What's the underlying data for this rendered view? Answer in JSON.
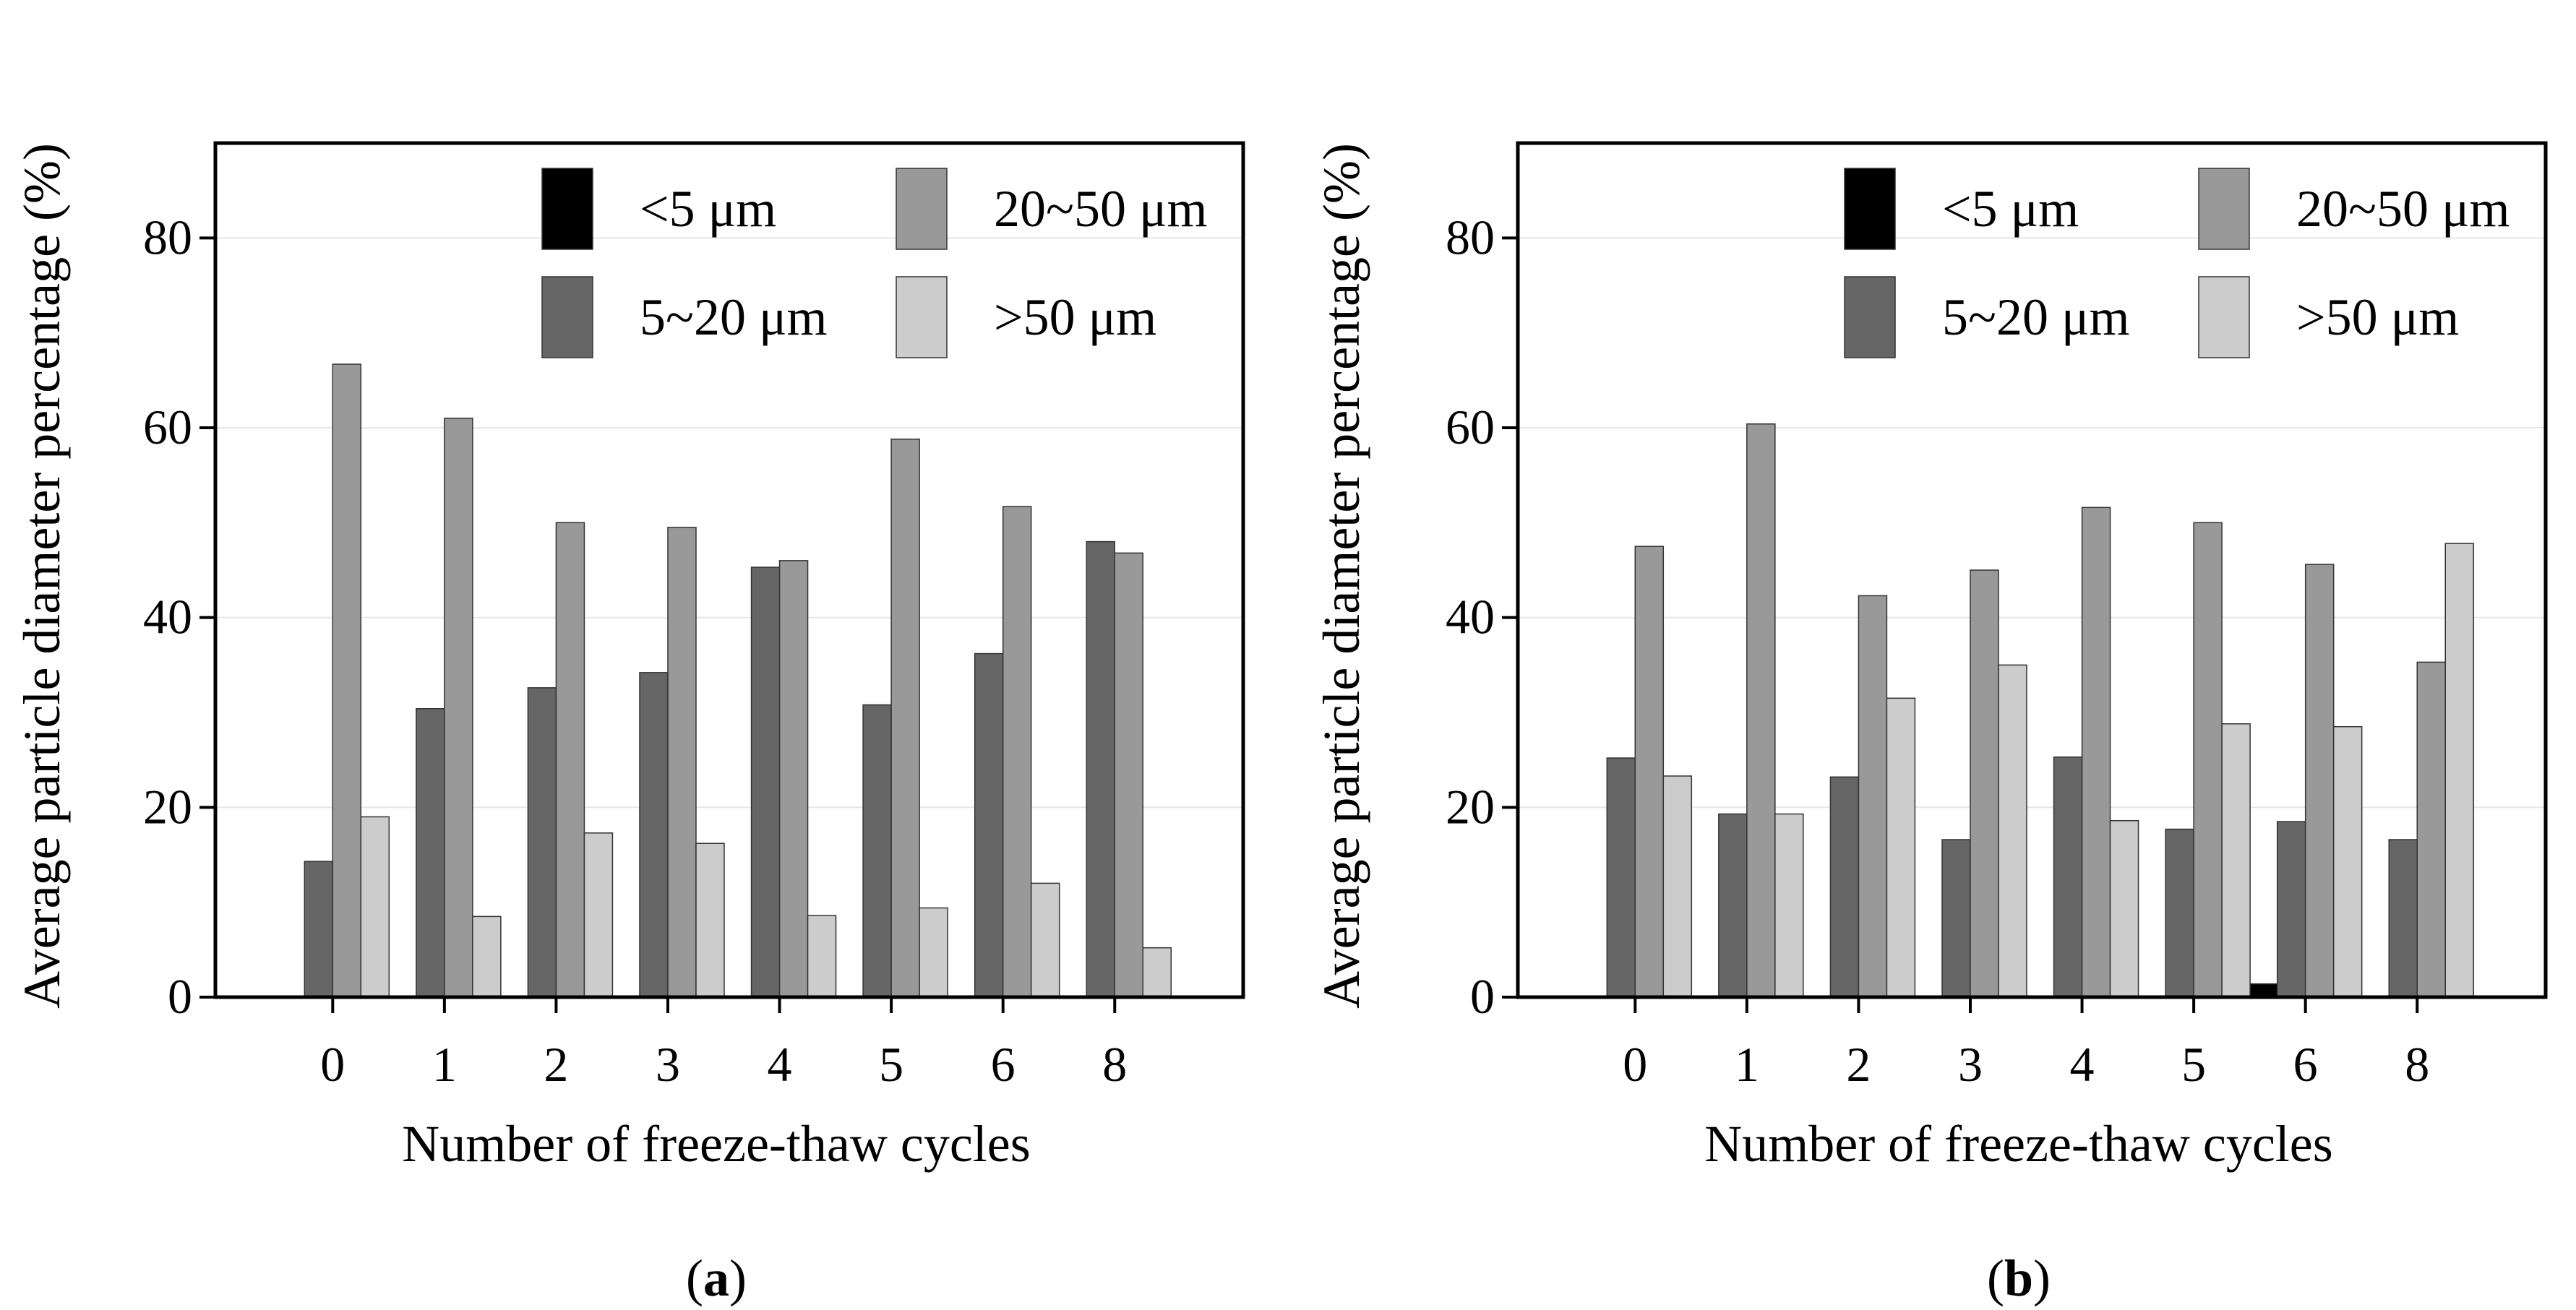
{
  "chart_data": [
    {
      "type": "bar",
      "panel_label": "a",
      "categories": [
        "0",
        "1",
        "2",
        "3",
        "4",
        "5",
        "6",
        "8"
      ],
      "xlabel": "Number of freeze-thaw cycles",
      "ylabel": "Average particle diameter percentage (%)",
      "ylim": [
        0,
        90
      ],
      "yticks": [
        0,
        20,
        40,
        60,
        80
      ],
      "grid": true,
      "legend_position": "top-right",
      "series": [
        {
          "name": "<5 μm",
          "color": "#000000",
          "values": [
            0,
            0,
            0,
            0,
            0,
            0,
            0,
            0
          ]
        },
        {
          "name": "5~20 μm",
          "color": "#666666",
          "values": [
            14.3,
            30.4,
            32.6,
            34.2,
            45.3,
            30.8,
            36.2,
            48.0
          ]
        },
        {
          "name": "20~50 μm",
          "color": "#999999",
          "values": [
            66.7,
            61.0,
            50.0,
            49.5,
            46.0,
            58.8,
            51.7,
            46.8
          ]
        },
        {
          "name": ">50 μm",
          "color": "#cccccc",
          "values": [
            19.0,
            8.5,
            17.3,
            16.2,
            8.6,
            9.4,
            12.0,
            5.2
          ]
        }
      ]
    },
    {
      "type": "bar",
      "panel_label": "b",
      "categories": [
        "0",
        "1",
        "2",
        "3",
        "4",
        "5",
        "6",
        "8"
      ],
      "xlabel": "Number of freeze-thaw cycles",
      "ylabel": "Average particle diameter percentage (%)",
      "ylim": [
        0,
        90
      ],
      "yticks": [
        0,
        20,
        40,
        60,
        80
      ],
      "grid": true,
      "legend_position": "top-right",
      "series": [
        {
          "name": "<5 μm",
          "color": "#000000",
          "values": [
            0,
            0,
            0,
            0,
            0,
            0,
            1.4,
            0
          ]
        },
        {
          "name": "5~20 μm",
          "color": "#666666",
          "values": [
            25.2,
            19.3,
            23.2,
            16.6,
            25.3,
            17.7,
            18.5,
            16.6
          ]
        },
        {
          "name": "20~50 μm",
          "color": "#999999",
          "values": [
            47.5,
            60.4,
            42.3,
            45.0,
            51.6,
            50.0,
            45.6,
            35.3
          ]
        },
        {
          "name": ">50 μm",
          "color": "#cccccc",
          "values": [
            23.3,
            19.3,
            31.5,
            35.0,
            18.6,
            28.8,
            28.5,
            47.8
          ]
        }
      ]
    }
  ]
}
